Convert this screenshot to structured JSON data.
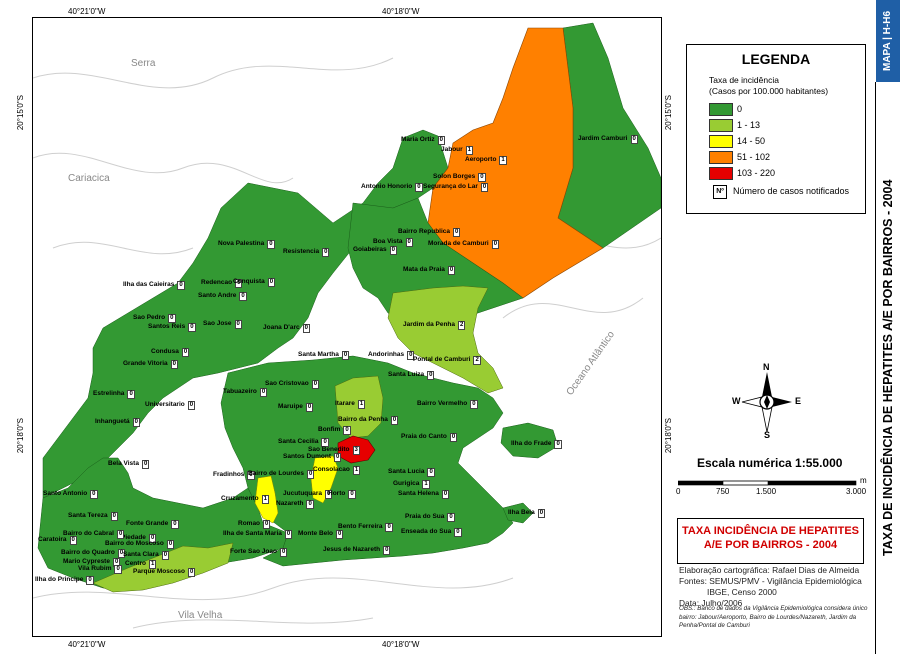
{
  "map": {
    "coords_top": [
      "40°21'0\"W",
      "40°18'0\"W"
    ],
    "coords_bottom": [
      "40°21'0\"W",
      "40°18'0\"W"
    ],
    "coords_left": [
      "20°15'0\"S",
      "20°18'0\"S"
    ],
    "coords_right": [
      "20°15'0\"S",
      "20°18'0\"S"
    ],
    "background_labels": {
      "serra": "Serra",
      "cariacica": "Cariacica",
      "vila_velha": "Vila Velha",
      "oceano": "Oceano Atlântico"
    },
    "colors": {
      "class_0": "#339933",
      "class_1_13": "#99cc33",
      "class_14_50": "#ffff00",
      "class_51_102": "#ff8000",
      "class_103_220": "#e60000",
      "water_lines": "#cccccc"
    },
    "neighborhoods": [
      {
        "name": "Maria Ortiz",
        "cases": "0"
      },
      {
        "name": "Jabour",
        "cases": "1"
      },
      {
        "name": "Aeroporto",
        "cases": "1"
      },
      {
        "name": "Jardim Camburi",
        "cases": "0"
      },
      {
        "name": "Solon Borges",
        "cases": "0"
      },
      {
        "name": "Segurança do Lar",
        "cases": "0"
      },
      {
        "name": "Antonio Honorio",
        "cases": "0"
      },
      {
        "name": "Nova Palestina",
        "cases": "0"
      },
      {
        "name": "Resistencia",
        "cases": "0"
      },
      {
        "name": "Bairro Republica",
        "cases": "0"
      },
      {
        "name": "Boa Vista",
        "cases": "0"
      },
      {
        "name": "Morada de Camburi",
        "cases": "0"
      },
      {
        "name": "Goiabeiras",
        "cases": "0"
      },
      {
        "name": "Mata da Praia",
        "cases": "0"
      },
      {
        "name": "Ilha das Caieiras",
        "cases": "0"
      },
      {
        "name": "Redencao",
        "cases": "0"
      },
      {
        "name": "Conquista",
        "cases": "0"
      },
      {
        "name": "Santo Andre",
        "cases": "0"
      },
      {
        "name": "Sao Pedro",
        "cases": "0"
      },
      {
        "name": "Santos Reis",
        "cases": "0"
      },
      {
        "name": "Sao Jose",
        "cases": "0"
      },
      {
        "name": "Joana D'arc",
        "cases": "0"
      },
      {
        "name": "Jardim da Penha",
        "cases": "2"
      },
      {
        "name": "Condusa",
        "cases": "0"
      },
      {
        "name": "Grande Vitoria",
        "cases": "0"
      },
      {
        "name": "Santa Martha",
        "cases": "0"
      },
      {
        "name": "Andorinhas",
        "cases": "0"
      },
      {
        "name": "Pontal de Camburi",
        "cases": "2"
      },
      {
        "name": "Santa Luiza",
        "cases": "0"
      },
      {
        "name": "Estrelinha",
        "cases": "0"
      },
      {
        "name": "Sao Cristovao",
        "cases": "0"
      },
      {
        "name": "Tabuazeiro",
        "cases": "0"
      },
      {
        "name": "Universitario",
        "cases": "0"
      },
      {
        "name": "Maruipe",
        "cases": "0"
      },
      {
        "name": "Itarare",
        "cases": "1"
      },
      {
        "name": "Bairro da Penha",
        "cases": "0"
      },
      {
        "name": "Bairro Vermelho",
        "cases": "0"
      },
      {
        "name": "Inhanguetá",
        "cases": "0"
      },
      {
        "name": "Bonfim",
        "cases": "0"
      },
      {
        "name": "Praia do Canto",
        "cases": "0"
      },
      {
        "name": "Santa Cecilia",
        "cases": "0"
      },
      {
        "name": "Sao Benedito",
        "cases": "3"
      },
      {
        "name": "Ilha do Frade",
        "cases": "0"
      },
      {
        "name": "Santos Dumont",
        "cases": "0"
      },
      {
        "name": "Bela Vista",
        "cases": "0"
      },
      {
        "name": "Fradinhos",
        "cases": "0"
      },
      {
        "name": "Bairro de Lourdes",
        "cases": "0"
      },
      {
        "name": "Consolacao",
        "cases": "1"
      },
      {
        "name": "Santa Lucia",
        "cases": "0"
      },
      {
        "name": "Gurigica",
        "cases": "1"
      },
      {
        "name": "Santo Antonio",
        "cases": "0"
      },
      {
        "name": "Cruzamento",
        "cases": "1"
      },
      {
        "name": "Jucutuquara",
        "cases": "0"
      },
      {
        "name": "Horto",
        "cases": "0"
      },
      {
        "name": "Santa Helena",
        "cases": "0"
      },
      {
        "name": "Nazareth",
        "cases": "0"
      },
      {
        "name": "Santa Tereza",
        "cases": "0"
      },
      {
        "name": "Fonte Grande",
        "cases": "0"
      },
      {
        "name": "Caratoira",
        "cases": "0"
      },
      {
        "name": "Piedade",
        "cases": "0"
      },
      {
        "name": "Bairro do Cabral",
        "cases": "0"
      },
      {
        "name": "Bairro do Moscoso",
        "cases": "0"
      },
      {
        "name": "Bairro do Quadro",
        "cases": "0"
      },
      {
        "name": "Mario Cypreste",
        "cases": "0"
      },
      {
        "name": "Vila Rubim",
        "cases": "0"
      },
      {
        "name": "Santa Clara",
        "cases": "0"
      },
      {
        "name": "Centro",
        "cases": "1"
      },
      {
        "name": "Parque Moscoso",
        "cases": "0"
      },
      {
        "name": "Ilha do Principe",
        "cases": "0"
      },
      {
        "name": "Romao",
        "cases": "0"
      },
      {
        "name": "Ilha de Santa Maria",
        "cases": "0"
      },
      {
        "name": "Monte Belo",
        "cases": "0"
      },
      {
        "name": "Bento Ferreira",
        "cases": "0"
      },
      {
        "name": "Praia do Sua",
        "cases": "0"
      },
      {
        "name": "Enseada do Sua",
        "cases": "0"
      },
      {
        "name": "Ilha Bela",
        "cases": "0"
      },
      {
        "name": "Forte Sao Joao",
        "cases": "0"
      },
      {
        "name": "Jesus de Nazareth",
        "cases": "0"
      }
    ]
  },
  "legend": {
    "title": "LEGENDA",
    "subtitle_line1": "Taxa de incidência",
    "subtitle_line2": "(Casos por 100.000 habitantes)",
    "classes": [
      {
        "label": "0",
        "color": "#339933"
      },
      {
        "label": "1 - 13",
        "color": "#99cc33"
      },
      {
        "label": "14 - 50",
        "color": "#ffff00"
      },
      {
        "label": "51 - 102",
        "color": "#ff8000"
      },
      {
        "label": "103 - 220",
        "color": "#e60000"
      }
    ],
    "count_symbol": "Nº",
    "count_label": "Número de casos notificados"
  },
  "compass": {
    "n": "N",
    "s": "S",
    "e": "E",
    "w": "W"
  },
  "scale": {
    "title": "Escala numérica   1:55.000",
    "ticks": [
      "0",
      "750",
      "1.500",
      "3.000"
    ],
    "unit": "m"
  },
  "title_box": {
    "line1": "TAXA INCIDÊNCIA DE HEPATITES",
    "line2": "A/E POR BAIRROS - 2004"
  },
  "credits": {
    "line1": "Elaboração cartográfica: Rafael Dias de Almeida",
    "line2": "Fontes: SEMUS/PMV - Vigilância Epidemiológica",
    "line3": "IBGE, Censo 2000",
    "line4": "Data: Julho/2006"
  },
  "obs": "OBS.: Banco de dados da Vigilância Epidemiológica considera único bairro: Jabour/Aeroporto, Bairro de Lourdes/Nazareth, Jardim da Penha/Pontal de Camburi",
  "sidebar": {
    "tab": "MAPA | H-H6",
    "title": "TAXA DE INCIDÊNCIA DE HEPATITES A/E POR BAIRROS - 2004"
  }
}
